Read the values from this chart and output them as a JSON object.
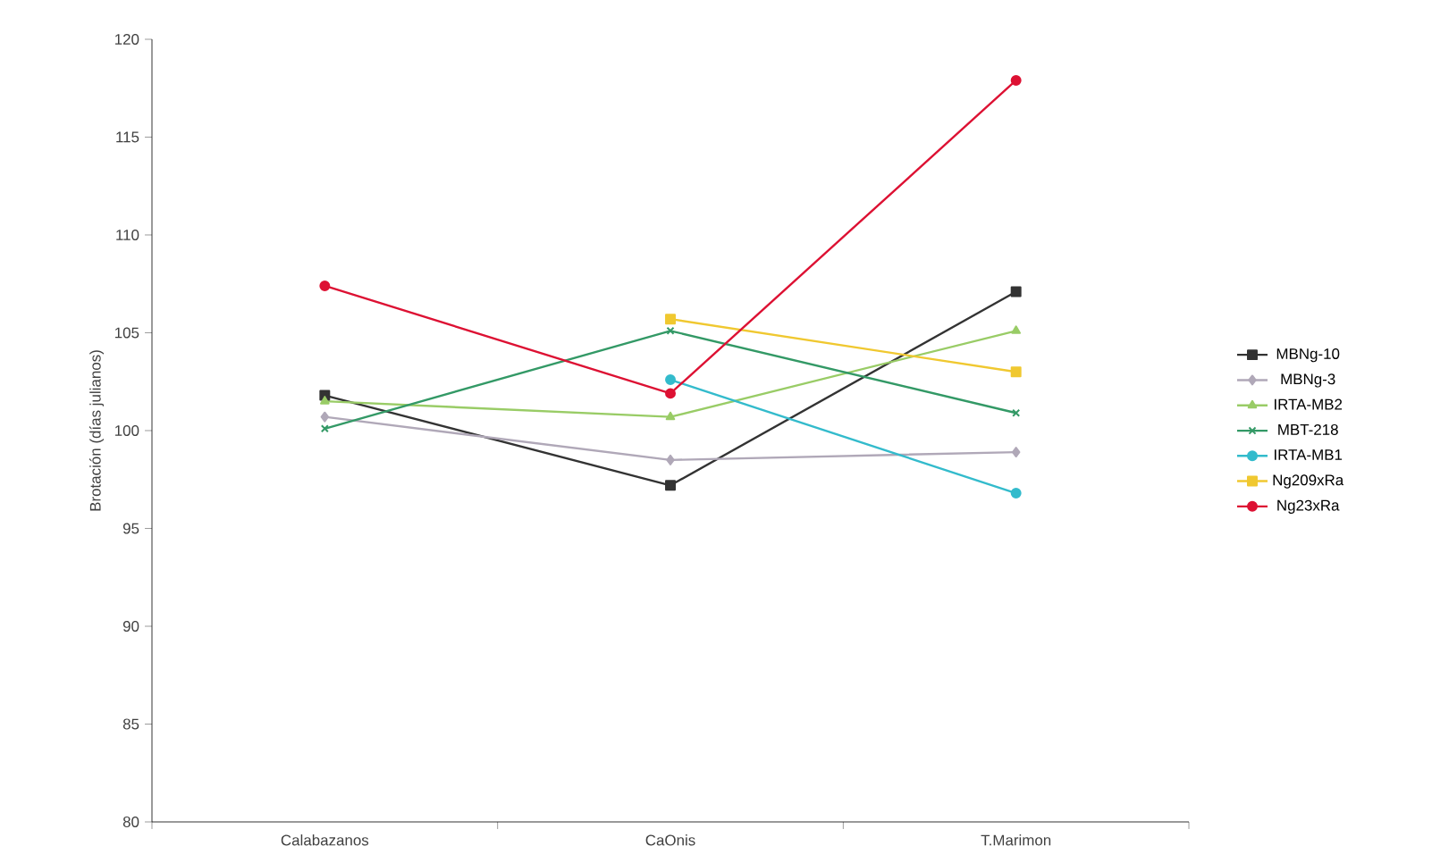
{
  "chart_data": {
    "type": "line",
    "ylabel": "Brotación (días julianos)",
    "categories": [
      "Calabazanos",
      "CaOnis",
      "T.Marimon"
    ],
    "ylim": [
      80,
      120
    ],
    "yticks": [
      80,
      85,
      90,
      95,
      100,
      105,
      110,
      115,
      120
    ],
    "grid": false,
    "legend": "right",
    "series": [
      {
        "name": "MBNg-10",
        "color": "#333333",
        "marker": "square",
        "values": [
          101.8,
          97.2,
          107.1
        ]
      },
      {
        "name": "MBNg-3",
        "color": "#b0a8b8",
        "marker": "diamond",
        "values": [
          100.7,
          98.5,
          98.9
        ]
      },
      {
        "name": "IRTA-MB2",
        "color": "#99cc66",
        "marker": "triangle",
        "values": [
          101.5,
          100.7,
          105.1
        ]
      },
      {
        "name": "MBT-218",
        "color": "#339966",
        "marker": "cross",
        "values": [
          100.1,
          105.1,
          100.9
        ]
      },
      {
        "name": "IRTA-MB1",
        "color": "#33bbcc",
        "marker": "circle",
        "values": [
          null,
          102.6,
          96.8
        ]
      },
      {
        "name": "Ng209xRa",
        "color": "#f0c830",
        "marker": "square",
        "values": [
          null,
          105.7,
          103.0
        ]
      },
      {
        "name": "Ng23xRa",
        "color": "#dd1133",
        "marker": "circle",
        "values": [
          107.4,
          101.9,
          117.9
        ]
      }
    ]
  }
}
